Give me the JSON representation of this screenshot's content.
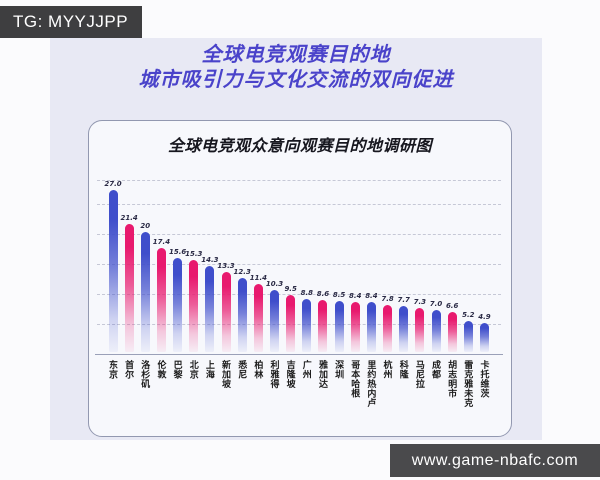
{
  "badge": {
    "text": "TG: MYYJJPP"
  },
  "poster": {
    "title_line1": "全球电竞观赛目的地",
    "title_line2": "城市吸引力与文化交流的双向促进",
    "title_color": "#4a43ca",
    "background_color": "#e8e9f4"
  },
  "chart_data": {
    "type": "bar",
    "title": "全球电竞观众意向观赛目的地调研图",
    "categories": [
      "东京",
      "首尔",
      "洛杉矶",
      "伦敦",
      "巴黎",
      "北京",
      "上海",
      "新加坡",
      "悉尼",
      "柏林",
      "利雅得",
      "吉隆坡",
      "广州",
      "雅加达",
      "深圳",
      "哥本哈根",
      "里约热内卢",
      "杭州",
      "科隆",
      "马尼拉",
      "成都",
      "胡志明市",
      "雷克雅未克",
      "卡托维茨"
    ],
    "values": [
      27.0,
      21.4,
      20,
      17.4,
      15.6,
      15.3,
      14.3,
      13.3,
      12.3,
      11.4,
      10.3,
      9.5,
      8.8,
      8.6,
      8.5,
      8.4,
      8.4,
      7.8,
      7.7,
      7.3,
      7.0,
      6.6,
      5.2,
      4.9
    ],
    "value_labels": [
      "27.0",
      "21.4",
      "20",
      "17.4",
      "15.6",
      "15.3",
      "14.3",
      "13.3",
      "12.3",
      "11.4",
      "10.3",
      "9.5",
      "8.8",
      "8.6",
      "8.5",
      "8.4",
      "8.4",
      "7.8",
      "7.7",
      "7.3",
      "7.0",
      "6.6",
      "5.2",
      "4.9"
    ],
    "bar_colors": [
      "blue",
      "pink",
      "blue",
      "pink",
      "blue",
      "pink",
      "blue",
      "pink",
      "blue",
      "pink",
      "blue",
      "pink",
      "blue",
      "pink",
      "blue",
      "pink",
      "blue",
      "pink",
      "blue",
      "pink",
      "blue",
      "pink",
      "blue",
      "blue"
    ],
    "colors": {
      "blue": "#3f4ecb",
      "pink": "#e8196e"
    },
    "xlabel": "",
    "ylabel": "",
    "ylim": [
      0,
      29
    ],
    "gridlines": [
      5,
      10,
      15,
      20,
      25,
      29
    ],
    "grid": "horizontal-dashed",
    "legend": "none",
    "x_label_orientation": "vertical"
  },
  "watermark": {
    "text": "www.game-nbafc.com"
  }
}
